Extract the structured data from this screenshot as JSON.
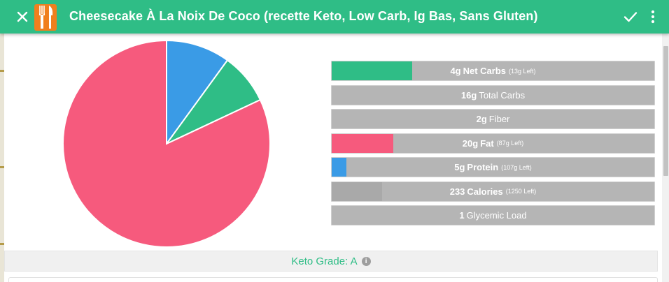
{
  "toolbar": {
    "title": "Cheesecake À La Noix De Coco (recette Keto, Low Carb, Ig Bas, Sans Gluten)",
    "close_icon": "close-icon",
    "check_icon": "check-icon",
    "more_icon": "more-vert-icon",
    "logo_icon": "fork-knife-logo",
    "background_color": "#2fbd86"
  },
  "macro_pie": {
    "slices": [
      {
        "name": "Fat",
        "fraction": 0.82,
        "color": "#f65a7d"
      },
      {
        "name": "Net Carbs",
        "fraction": 0.08,
        "color": "#2fbd86"
      },
      {
        "name": "Protein",
        "fraction": 0.1,
        "color": "#3a9be6"
      }
    ]
  },
  "macro_bars": [
    {
      "value": "4g",
      "name": "Net Carbs",
      "left": "(13g Left)",
      "fill_fraction": 0.25,
      "fill_color": "#2fbd86",
      "bold_name": true
    },
    {
      "value": "16g",
      "name": "Total Carbs",
      "left": "",
      "fill_fraction": 0,
      "fill_color": "",
      "bold_name": false
    },
    {
      "value": "2g",
      "name": "Fiber",
      "left": "",
      "fill_fraction": 0,
      "fill_color": "",
      "bold_name": false
    },
    {
      "value": "20g",
      "name": "Fat",
      "left": "(87g Left)",
      "fill_fraction": 0.19,
      "fill_color": "#f65a7d",
      "bold_name": true
    },
    {
      "value": "5g",
      "name": "Protein",
      "left": "(107g Left)",
      "fill_fraction": 0.045,
      "fill_color": "#3a9be6",
      "bold_name": true
    },
    {
      "value": "233",
      "name": "Calories",
      "left": "(1250 Left)",
      "fill_fraction": 0.157,
      "fill_color": "#a9a9a9",
      "bold_name": true
    },
    {
      "value": "1",
      "name": "Glycemic Load",
      "left": "",
      "fill_fraction": 0,
      "fill_color": "",
      "bold_name": false
    }
  ],
  "keto_grade": {
    "label": "Keto Grade: A",
    "info_icon": "info-icon",
    "info_glyph": "i"
  }
}
